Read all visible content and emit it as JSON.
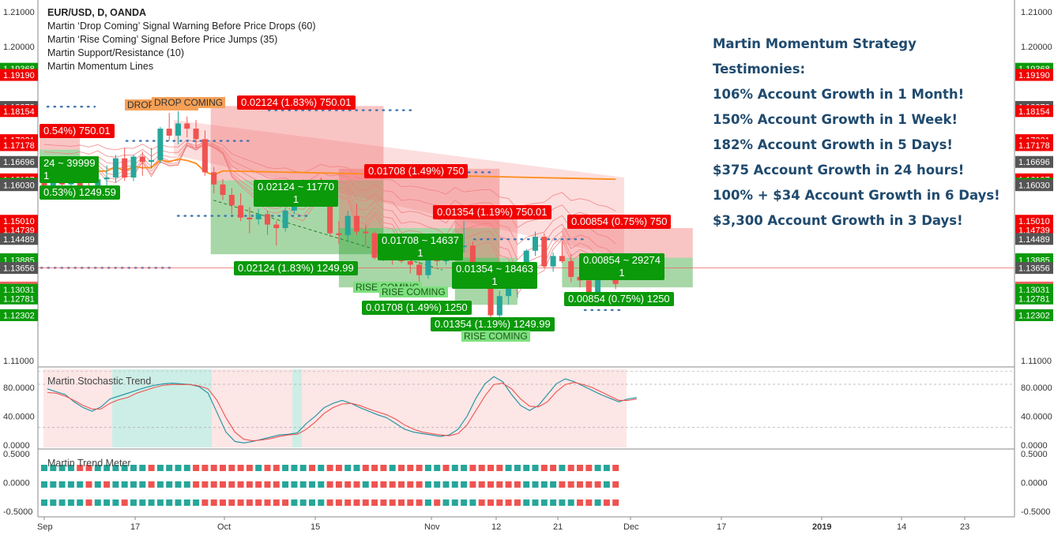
{
  "header": {
    "symbol": "EUR/USD, D, OANDA",
    "indicators": [
      "Martin ‘Drop Coming’ Signal Warning Before Price Drops (60)",
      "Martin ‘Rise Coming’ Signal Before Price Jumps (35)",
      "Martin Support/Resistance (10)",
      "Martin Momentum Lines"
    ]
  },
  "testimonies": {
    "title": "Martin Momentum Strategy",
    "subtitle": "Testimonies:",
    "lines": [
      "106% Account Growth in 1 Month!",
      "150% Account Growth in 1 Week!",
      "182% Account Growth in 5 Days!",
      "$375 Account Growth in 24 hours!",
      "100% + $34 Account Growth in 6 Days!",
      "$3,300 Account Growth in 3 Days!"
    ]
  },
  "panels": {
    "stochastic_label": "Martin Stochastic Trend",
    "trend_meter_label": "Martin Trend Meter"
  },
  "colors": {
    "up": "#26a69a",
    "down": "#ef5350",
    "profit_zone": "#2ea02e",
    "loss_zone": "#f06464",
    "label_red": "#f20000",
    "label_green": "#0a9a0a",
    "text_blue": "#1f4a6e"
  },
  "trade_labels": [
    {
      "text": "0.02124 (1.83%) 750.01",
      "kind": "red"
    },
    {
      "text": "0.54%) 750.01",
      "kind": "red"
    },
    {
      "text": "0.01708 (1.49%) 750",
      "kind": "red"
    },
    {
      "text": "0.01354 (1.19%) 750.01",
      "kind": "red"
    },
    {
      "text": "0.00854 (0.75%) 750",
      "kind": "red"
    },
    {
      "text": "24 ~ 39999\n1",
      "kind": "green"
    },
    {
      "text": "0.53%) 1249.59",
      "kind": "green"
    },
    {
      "text": "0.02124 ~ 11770\n1",
      "kind": "green"
    },
    {
      "text": "0.02124 (1.83%) 1249.99",
      "kind": "green"
    },
    {
      "text": "0.01708 ~ 14637\n1",
      "kind": "green"
    },
    {
      "text": "0.01708 (1.49%) 1250",
      "kind": "green"
    },
    {
      "text": "0.01354 ~ 18463\n1",
      "kind": "green"
    },
    {
      "text": "0.01354 (1.19%) 1249.99",
      "kind": "green"
    },
    {
      "text": "0.00854 ~ 29274\n1",
      "kind": "green"
    },
    {
      "text": "0.00854 (0.75%) 1250",
      "kind": "green"
    }
  ],
  "signal_labels": [
    {
      "text": "DROP COMING",
      "kind": "drop"
    },
    {
      "text": "DROP COMING",
      "kind": "drop"
    },
    {
      "text": "RISE COMING",
      "kind": "rise"
    },
    {
      "text": "RISE COMING",
      "kind": "rise"
    },
    {
      "text": "RISE COMING",
      "kind": "rise"
    }
  ],
  "chart_data": [
    {
      "type": "candlestick",
      "title": "EUR/USD, D, OANDA",
      "ylim": [
        1.105,
        1.215
      ],
      "y_ticks": [
        "1.21000",
        "1.20000",
        "1.11000"
      ],
      "x_ticks": [
        "Sep",
        "17",
        "Oct",
        "15",
        "Nov",
        "12",
        "21",
        "Dec",
        "17",
        "2019",
        "14",
        "23"
      ],
      "price_labels": [
        {
          "value": "1.19368",
          "color": "#0a9a0a"
        },
        {
          "value": "1.19190",
          "color": "#f20000"
        },
        {
          "value": "1.18273",
          "color": "#555555"
        },
        {
          "value": "1.18154",
          "color": "#f20000"
        },
        {
          "value": "1.17321",
          "color": "#f20000"
        },
        {
          "value": "1.17178",
          "color": "#f20000"
        },
        {
          "value": "1.16696",
          "color": "#555555"
        },
        {
          "value": "1.16197",
          "color": "#f20000"
        },
        {
          "value": "1.16072",
          "color": "#0a9a0a"
        },
        {
          "value": "1.16030",
          "color": "#555555"
        },
        {
          "value": "1.15010",
          "color": "#f20000"
        },
        {
          "value": "1.14739",
          "color": "#f20000"
        },
        {
          "value": "1.14489",
          "color": "#555555"
        },
        {
          "value": "1.13906",
          "color": "#0a9a0a"
        },
        {
          "value": "1.13885",
          "color": "#0a9a0a"
        },
        {
          "value": "1.13656",
          "color": "#555555"
        },
        {
          "value": "1.13095",
          "color": "#f06464"
        },
        {
          "value": "1.13031",
          "color": "#0a9a0a"
        },
        {
          "value": "1.12781",
          "color": "#0a9a0a"
        },
        {
          "value": "1.12302",
          "color": "#0a9a0a"
        }
      ],
      "candles": [
        {
          "date": "Sep 03",
          "o": 1.162,
          "h": 1.166,
          "l": 1.1578,
          "c": 1.1598
        },
        {
          "date": "Sep 04",
          "o": 1.1598,
          "h": 1.164,
          "l": 1.158,
          "c": 1.162
        },
        {
          "date": "Sep 05",
          "o": 1.162,
          "h": 1.165,
          "l": 1.158,
          "c": 1.1605
        },
        {
          "date": "Sep 06",
          "o": 1.1605,
          "h": 1.166,
          "l": 1.1585,
          "c": 1.164
        },
        {
          "date": "Sep 07",
          "o": 1.164,
          "h": 1.167,
          "l": 1.159,
          "c": 1.16
        },
        {
          "date": "Sep 10",
          "o": 1.16,
          "h": 1.163,
          "l": 1.1575,
          "c": 1.1595
        },
        {
          "date": "Sep 11",
          "o": 1.1595,
          "h": 1.163,
          "l": 1.158,
          "c": 1.162
        },
        {
          "date": "Sep 12",
          "o": 1.162,
          "h": 1.166,
          "l": 1.16,
          "c": 1.1625
        },
        {
          "date": "Sep 13",
          "o": 1.1625,
          "h": 1.169,
          "l": 1.161,
          "c": 1.168
        },
        {
          "date": "Sep 14",
          "o": 1.168,
          "h": 1.171,
          "l": 1.1615,
          "c": 1.1625
        },
        {
          "date": "Sep 17",
          "o": 1.1625,
          "h": 1.169,
          "l": 1.1615,
          "c": 1.1685
        },
        {
          "date": "Sep 18",
          "o": 1.1685,
          "h": 1.17,
          "l": 1.163,
          "c": 1.167
        },
        {
          "date": "Sep 19",
          "o": 1.167,
          "h": 1.171,
          "l": 1.165,
          "c": 1.1675
        },
        {
          "date": "Sep 20",
          "o": 1.1675,
          "h": 1.177,
          "l": 1.1665,
          "c": 1.1765
        },
        {
          "date": "Sep 21",
          "o": 1.1765,
          "h": 1.181,
          "l": 1.173,
          "c": 1.1745
        },
        {
          "date": "Sep 24",
          "o": 1.1745,
          "h": 1.1815,
          "l": 1.172,
          "c": 1.178
        },
        {
          "date": "Sep 25",
          "o": 1.178,
          "h": 1.18,
          "l": 1.174,
          "c": 1.1765
        },
        {
          "date": "Sep 26",
          "o": 1.1765,
          "h": 1.179,
          "l": 1.171,
          "c": 1.1735
        },
        {
          "date": "Sep 27",
          "o": 1.1735,
          "h": 1.176,
          "l": 1.163,
          "c": 1.164
        },
        {
          "date": "Sep 28",
          "o": 1.164,
          "h": 1.1655,
          "l": 1.158,
          "c": 1.1605
        },
        {
          "date": "Oct 01",
          "o": 1.1605,
          "h": 1.162,
          "l": 1.156,
          "c": 1.1575
        },
        {
          "date": "Oct 02",
          "o": 1.1575,
          "h": 1.1595,
          "l": 1.152,
          "c": 1.1545
        },
        {
          "date": "Oct 03",
          "o": 1.1545,
          "h": 1.158,
          "l": 1.15,
          "c": 1.151
        },
        {
          "date": "Oct 04",
          "o": 1.151,
          "h": 1.154,
          "l": 1.1465,
          "c": 1.1505
        },
        {
          "date": "Oct 05",
          "o": 1.1505,
          "h": 1.1535,
          "l": 1.149,
          "c": 1.152
        },
        {
          "date": "Oct 08",
          "o": 1.152,
          "h": 1.153,
          "l": 1.146,
          "c": 1.149
        },
        {
          "date": "Oct 09",
          "o": 1.149,
          "h": 1.15,
          "l": 1.143,
          "c": 1.148
        },
        {
          "date": "Oct 10",
          "o": 1.148,
          "h": 1.154,
          "l": 1.147,
          "c": 1.153
        },
        {
          "date": "Oct 11",
          "o": 1.153,
          "h": 1.161,
          "l": 1.152,
          "c": 1.159
        },
        {
          "date": "Oct 12",
          "o": 1.159,
          "h": 1.162,
          "l": 1.156,
          "c": 1.1565
        },
        {
          "date": "Oct 15",
          "o": 1.1565,
          "h": 1.161,
          "l": 1.1545,
          "c": 1.158
        },
        {
          "date": "Oct 16",
          "o": 1.158,
          "h": 1.1625,
          "l": 1.156,
          "c": 1.157
        },
        {
          "date": "Oct 17",
          "o": 1.157,
          "h": 1.1575,
          "l": 1.1455,
          "c": 1.1465
        },
        {
          "date": "Oct 18",
          "o": 1.1465,
          "h": 1.15,
          "l": 1.1435,
          "c": 1.146
        },
        {
          "date": "Oct 19",
          "o": 1.146,
          "h": 1.153,
          "l": 1.144,
          "c": 1.1515
        },
        {
          "date": "Oct 22",
          "o": 1.1515,
          "h": 1.155,
          "l": 1.146,
          "c": 1.147
        },
        {
          "date": "Oct 23",
          "o": 1.147,
          "h": 1.149,
          "l": 1.143,
          "c": 1.1465
        },
        {
          "date": "Oct 24",
          "o": 1.1465,
          "h": 1.147,
          "l": 1.139,
          "c": 1.1395
        },
        {
          "date": "Oct 25",
          "o": 1.1395,
          "h": 1.1425,
          "l": 1.1385,
          "c": 1.141
        },
        {
          "date": "Oct 26",
          "o": 1.141,
          "h": 1.142,
          "l": 1.1375,
          "c": 1.1405
        },
        {
          "date": "Oct 29",
          "o": 1.1405,
          "h": 1.143,
          "l": 1.138,
          "c": 1.1385
        },
        {
          "date": "Oct 30",
          "o": 1.1385,
          "h": 1.14,
          "l": 1.135,
          "c": 1.1375
        },
        {
          "date": "Oct 31",
          "o": 1.1375,
          "h": 1.1385,
          "l": 1.132,
          "c": 1.1345
        },
        {
          "date": "Nov 01",
          "o": 1.1345,
          "h": 1.1435,
          "l": 1.1335,
          "c": 1.143
        },
        {
          "date": "Nov 02",
          "o": 1.143,
          "h": 1.1465,
          "l": 1.137,
          "c": 1.1385
        },
        {
          "date": "Nov 05",
          "o": 1.1385,
          "h": 1.142,
          "l": 1.1375,
          "c": 1.1405
        },
        {
          "date": "Nov 06",
          "o": 1.1405,
          "h": 1.1445,
          "l": 1.1395,
          "c": 1.1425
        },
        {
          "date": "Nov 07",
          "o": 1.1425,
          "h": 1.15,
          "l": 1.141,
          "c": 1.143
        },
        {
          "date": "Nov 08",
          "o": 1.143,
          "h": 1.144,
          "l": 1.1345,
          "c": 1.1355
        },
        {
          "date": "Nov 09",
          "o": 1.1355,
          "h": 1.136,
          "l": 1.1335,
          "c": 1.1345
        },
        {
          "date": "Nov 12",
          "o": 1.1345,
          "h": 1.135,
          "l": 1.1215,
          "c": 1.123
        },
        {
          "date": "Nov 13",
          "o": 1.123,
          "h": 1.13,
          "l": 1.1215,
          "c": 1.1285
        },
        {
          "date": "Nov 14",
          "o": 1.1285,
          "h": 1.132,
          "l": 1.126,
          "c": 1.131
        },
        {
          "date": "Nov 15",
          "o": 1.131,
          "h": 1.134,
          "l": 1.128,
          "c": 1.133
        },
        {
          "date": "Nov 16",
          "o": 1.133,
          "h": 1.142,
          "l": 1.132,
          "c": 1.1415
        },
        {
          "date": "Nov 19",
          "o": 1.1415,
          "h": 1.147,
          "l": 1.14,
          "c": 1.1455
        },
        {
          "date": "Nov 20",
          "o": 1.1455,
          "h": 1.1465,
          "l": 1.1365,
          "c": 1.137
        },
        {
          "date": "Nov 21",
          "o": 1.137,
          "h": 1.141,
          "l": 1.1355,
          "c": 1.14
        },
        {
          "date": "Nov 22",
          "o": 1.14,
          "h": 1.144,
          "l": 1.138,
          "c": 1.1385
        },
        {
          "date": "Nov 23",
          "o": 1.1385,
          "h": 1.1405,
          "l": 1.1325,
          "c": 1.134
        },
        {
          "date": "Nov 26",
          "o": 1.134,
          "h": 1.1345,
          "l": 1.131,
          "c": 1.133
        },
        {
          "date": "Nov 27",
          "o": 1.133,
          "h": 1.135,
          "l": 1.127,
          "c": 1.1285
        },
        {
          "date": "Nov 28",
          "o": 1.1285,
          "h": 1.139,
          "l": 1.1275,
          "c": 1.137
        },
        {
          "date": "Nov 29",
          "o": 1.137,
          "h": 1.1395,
          "l": 1.1365,
          "c": 1.138
        },
        {
          "date": "Nov 30",
          "o": 1.138,
          "h": 1.1385,
          "l": 1.1305,
          "c": 1.132
        }
      ]
    },
    {
      "type": "line",
      "title": "Martin Stochastic Trend",
      "ylim": [
        -2,
        100
      ],
      "y_ticks": [
        "80.0000",
        "40.0000",
        "0.0000"
      ],
      "series": [
        {
          "values": [
            78,
            74,
            70,
            60,
            52,
            47,
            53,
            64,
            68,
            72,
            76,
            80,
            83,
            85,
            86,
            85,
            84,
            81,
            72,
            45,
            18,
            5,
            3,
            5,
            8,
            11,
            14,
            15,
            17,
            30,
            40,
            52,
            58,
            62,
            58,
            52,
            47,
            42,
            38,
            30,
            22,
            18,
            16,
            14,
            12,
            14,
            22,
            40,
            65,
            85,
            95,
            88,
            70,
            55,
            48,
            55,
            70,
            85,
            92,
            88,
            82,
            76,
            70,
            65,
            60,
            64,
            66
          ]
        },
        {
          "values": [
            73,
            72,
            68,
            62,
            55,
            50,
            50,
            58,
            63,
            66,
            72,
            76,
            80,
            83,
            84,
            84,
            84,
            82,
            78,
            62,
            38,
            18,
            8,
            6,
            7,
            9,
            12,
            14,
            15,
            22,
            32,
            44,
            52,
            57,
            58,
            55,
            50,
            46,
            42,
            36,
            28,
            22,
            18,
            16,
            14,
            13,
            16,
            28,
            48,
            68,
            84,
            86,
            78,
            64,
            54,
            53,
            60,
            74,
            84,
            87,
            84,
            80,
            74,
            68,
            62,
            62,
            64
          ]
        }
      ]
    },
    {
      "type": "heatmap",
      "title": "Martin Trend Meter",
      "ylim": [
        -0.5,
        0.5
      ],
      "y_ticks": [
        "0.5000",
        "0.0000",
        "-0.5000"
      ]
    }
  ]
}
